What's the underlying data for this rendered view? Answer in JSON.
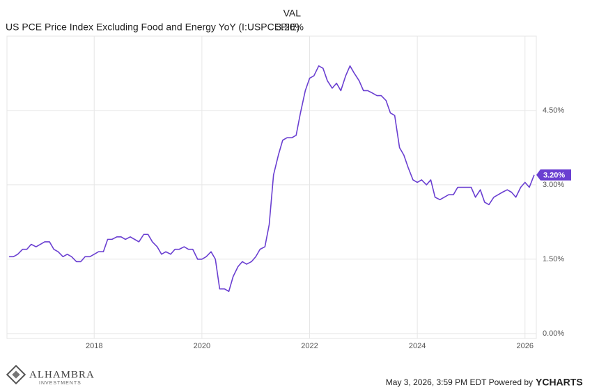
{
  "chart_data": {
    "type": "line",
    "header_label": "VAL",
    "series": [
      {
        "name": "US PCE Price Index Excluding Food and Energy YoY (I:USPCEPIE)",
        "color": "#6a3fd1",
        "last_label": "3.20%",
        "values": [
          1.55,
          1.55,
          1.6,
          1.7,
          1.7,
          1.8,
          1.75,
          1.8,
          1.85,
          1.85,
          1.7,
          1.65,
          1.55,
          1.6,
          1.55,
          1.45,
          1.45,
          1.55,
          1.55,
          1.6,
          1.65,
          1.65,
          1.9,
          1.9,
          1.95,
          1.95,
          1.9,
          1.95,
          1.9,
          1.85,
          2.0,
          2.0,
          1.85,
          1.75,
          1.6,
          1.65,
          1.6,
          1.7,
          1.7,
          1.75,
          1.7,
          1.7,
          1.5,
          1.5,
          1.55,
          1.65,
          1.5,
          0.9,
          0.9,
          0.85,
          1.15,
          1.35,
          1.45,
          1.4,
          1.45,
          1.55,
          1.7,
          1.75,
          2.2,
          3.2,
          3.6,
          3.9,
          3.95,
          3.95,
          4.0,
          4.45,
          4.9,
          5.15,
          5.2,
          5.4,
          5.35,
          5.1,
          4.95,
          5.05,
          4.9,
          5.2,
          5.4,
          5.25,
          5.1,
          4.9,
          4.9,
          4.85,
          4.8,
          4.8,
          4.7,
          4.45,
          4.4,
          3.75,
          3.6,
          3.35,
          3.1,
          3.05,
          3.1,
          3.0,
          3.1,
          2.75,
          2.7,
          2.75,
          2.8,
          2.8,
          2.95,
          2.95,
          2.95,
          2.95,
          2.75,
          2.9,
          2.65,
          2.6,
          2.75,
          2.8,
          2.85,
          2.9,
          2.85,
          2.75,
          2.95,
          3.05,
          2.95,
          3.2
        ]
      }
    ],
    "x": [
      2016.42,
      2016.5,
      2016.58,
      2016.67,
      2016.75,
      2016.83,
      2016.92,
      2017,
      2017.08,
      2017.17,
      2017.25,
      2017.33,
      2017.42,
      2017.5,
      2017.58,
      2017.67,
      2017.75,
      2017.83,
      2017.92,
      2018,
      2018.08,
      2018.17,
      2018.25,
      2018.33,
      2018.42,
      2018.5,
      2018.58,
      2018.67,
      2018.75,
      2018.83,
      2018.92,
      2019,
      2019.08,
      2019.17,
      2019.25,
      2019.33,
      2019.42,
      2019.5,
      2019.58,
      2019.67,
      2019.75,
      2019.83,
      2019.92,
      2020,
      2020.08,
      2020.17,
      2020.25,
      2020.33,
      2020.42,
      2020.5,
      2020.58,
      2020.67,
      2020.75,
      2020.83,
      2020.92,
      2021,
      2021.08,
      2021.17,
      2021.25,
      2021.33,
      2021.42,
      2021.5,
      2021.58,
      2021.67,
      2021.75,
      2021.83,
      2021.92,
      2022,
      2022.08,
      2022.17,
      2022.25,
      2022.33,
      2022.42,
      2022.5,
      2022.58,
      2022.67,
      2022.75,
      2022.83,
      2022.92,
      2023,
      2023.08,
      2023.17,
      2023.25,
      2023.33,
      2023.42,
      2023.5,
      2023.58,
      2023.67,
      2023.75,
      2023.83,
      2023.92,
      2024,
      2024.08,
      2024.17,
      2024.25,
      2024.33,
      2024.42,
      2024.5,
      2024.58,
      2024.67,
      2024.75,
      2024.83,
      2024.92,
      2025,
      2025.08,
      2025.17,
      2025.25,
      2025.33,
      2025.42,
      2025.5,
      2025.58,
      2025.67,
      2025.75,
      2025.83,
      2025.92,
      2026,
      2026.08,
      2026.17
    ],
    "xlim": [
      2016.38,
      2026.21
    ],
    "xticks": [
      2018,
      2020,
      2022,
      2024,
      2026
    ],
    "ylim": [
      -0.1,
      6.0
    ],
    "yticks": [
      {
        "value": 0,
        "label": "0.00%"
      },
      {
        "value": 1.5,
        "label": "1.50%"
      },
      {
        "value": 3,
        "label": "3.00%"
      },
      {
        "value": 4.5,
        "label": "4.50%"
      }
    ],
    "grid": true,
    "footer": "May 3, 2026, 3:59 PM EDT Powered by",
    "brand": "YCHARTS",
    "logo_name": "ALHAMBRA",
    "logo_sub": "INVESTMENTS"
  }
}
